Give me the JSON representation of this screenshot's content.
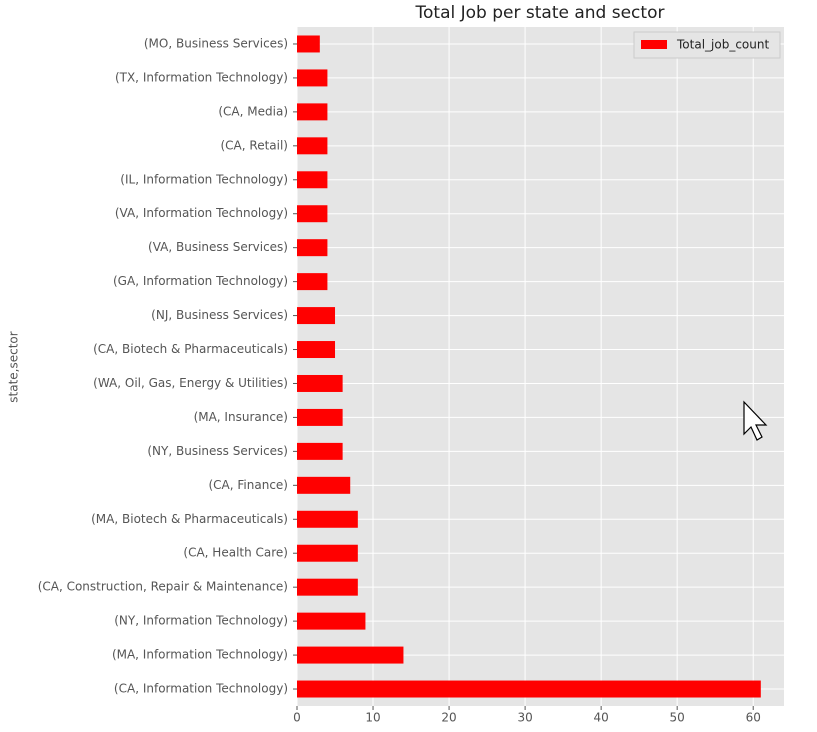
{
  "chart_data": {
    "type": "barh",
    "title": "Total Job per state and sector",
    "y_label": "state,sector",
    "categories": [
      "(MO, Business Services)",
      "(TX, Information Technology)",
      "(CA, Media)",
      "(CA, Retail)",
      "(IL, Information Technology)",
      "(VA, Information Technology)",
      "(VA, Business Services)",
      "(GA, Information Technology)",
      "(NJ, Business Services)",
      "(CA, Biotech & Pharmaceuticals)",
      "(WA, Oil, Gas, Energy & Utilities)",
      "(MA, Insurance)",
      "(NY, Business Services)",
      "(CA, Finance)",
      "(MA, Biotech & Pharmaceuticals)",
      "(CA, Health Care)",
      "(CA, Construction, Repair & Maintenance)",
      "(NY, Information Technology)",
      "(MA, Information Technology)",
      "(CA, Information Technology)"
    ],
    "series": [
      {
        "name": "Total_job_count",
        "color": "#ff0000",
        "values": [
          3,
          4,
          4,
          4,
          4,
          4,
          4,
          4,
          5,
          5,
          6,
          6,
          6,
          7,
          8,
          8,
          8,
          9,
          14,
          61
        ]
      }
    ],
    "xlim": [
      0,
      64.05
    ],
    "xticks": [
      0,
      10,
      20,
      30,
      40,
      50,
      60
    ],
    "grid": true,
    "legend": "upper-right"
  }
}
